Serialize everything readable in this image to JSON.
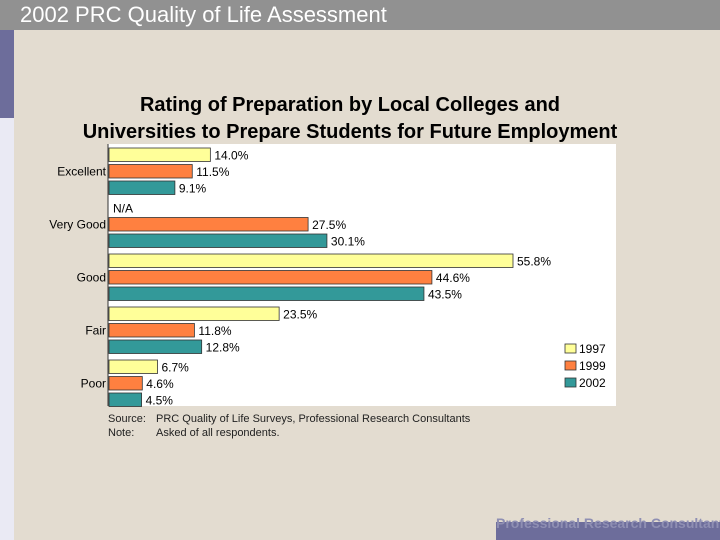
{
  "header": {
    "title": "2002 PRC Quality of Life Assessment"
  },
  "chart_data": {
    "type": "bar",
    "orientation": "horizontal",
    "title_line1": "Rating of Preparation by Local Colleges and",
    "title_line2": "Universities to Prepare Students for Future Employment",
    "categories": [
      "Excellent",
      "Very Good",
      "Good",
      "Fair",
      "Poor"
    ],
    "series": [
      {
        "name": "1997",
        "color": "#ffff99",
        "values": [
          14.0,
          null,
          55.8,
          23.5,
          6.7
        ],
        "labels": [
          "14.0%",
          "N/A",
          "55.8%",
          "23.5%",
          "6.7%"
        ]
      },
      {
        "name": "1999",
        "color": "#ff8040",
        "values": [
          11.5,
          27.5,
          44.6,
          11.8,
          4.6
        ],
        "labels": [
          "11.5%",
          "27.5%",
          "44.6%",
          "11.8%",
          "4.6%"
        ]
      },
      {
        "name": "2002",
        "color": "#339999",
        "values": [
          9.1,
          30.1,
          43.5,
          12.8,
          4.5
        ],
        "labels": [
          "9.1%",
          "30.1%",
          "43.5%",
          "12.8%",
          "4.5%"
        ]
      }
    ],
    "xlim": [
      0,
      55.8
    ],
    "legend_position": "bottom-right"
  },
  "notes": {
    "source_label": "Source:",
    "source_text": "PRC Quality of Life Surveys, Professional Research Consultants",
    "note_label": "Note:",
    "note_text": "Asked of all respondents."
  },
  "footer": {
    "text": "Professional Research Consultants"
  }
}
